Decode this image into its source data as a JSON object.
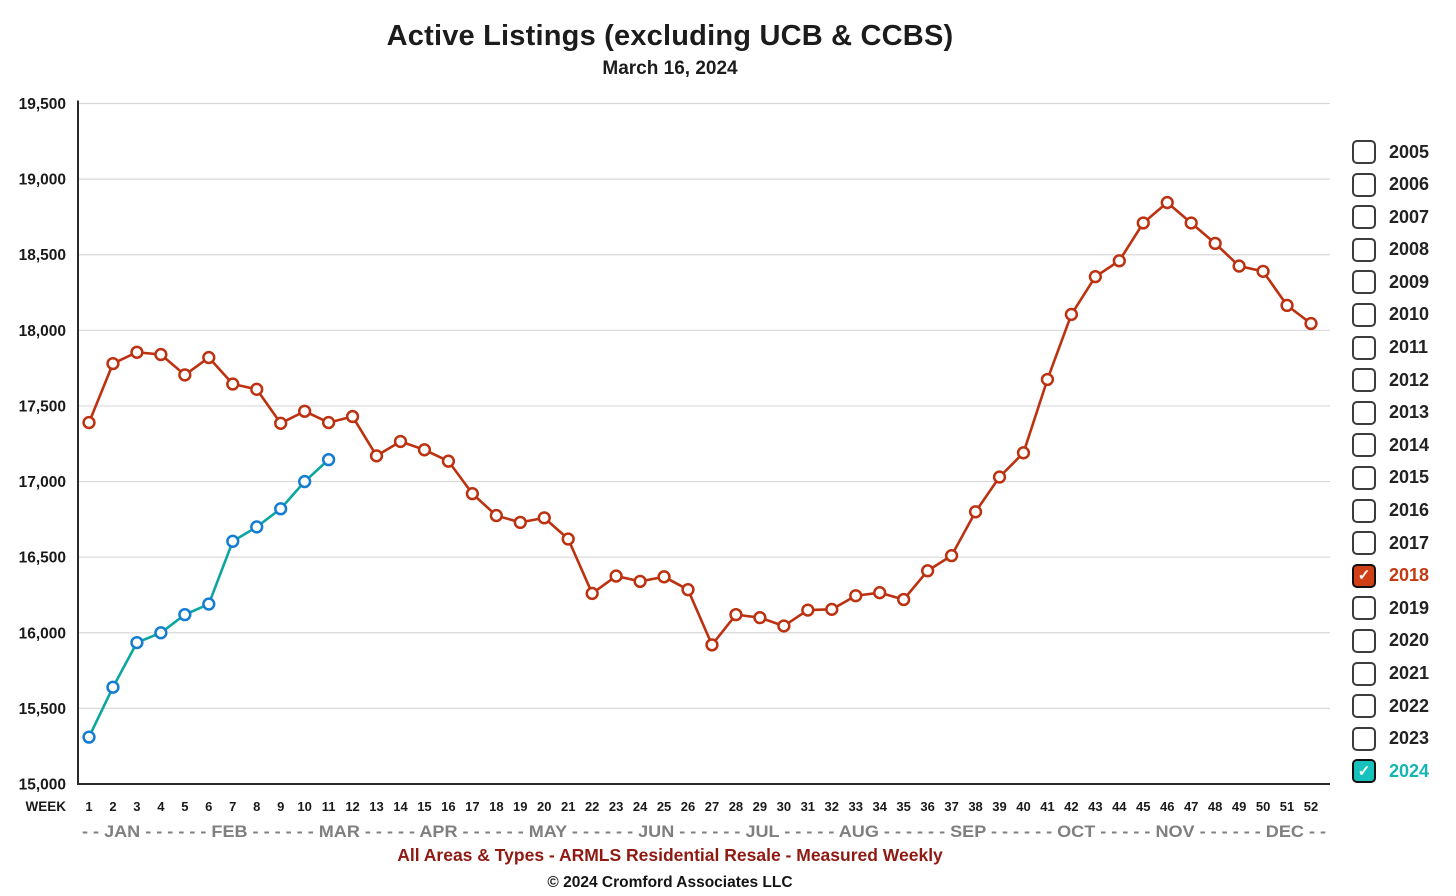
{
  "title": "Active Listings (excluding UCB & CCBS)",
  "subtitle": "March 16, 2024",
  "footer": {
    "caption": "All Areas & Types - ARMLS Residential Resale - Measured Weekly",
    "copyright": "© 2024 Cromford Associates LLC"
  },
  "colors": {
    "gridline": "#d9d9d9",
    "axis": "#2a2a2a",
    "tick_text": "#1a1a1a",
    "month_text": "#7f7f7f",
    "caption_red": "#8e1a12",
    "series_2018": "#bc3211",
    "series_2024_line": "#0ca6a0",
    "series_2024_marker": "#147dd2"
  },
  "legend": {
    "check_glyph": "✓",
    "years": [
      {
        "label": "2005",
        "checked": false
      },
      {
        "label": "2006",
        "checked": false
      },
      {
        "label": "2007",
        "checked": false
      },
      {
        "label": "2008",
        "checked": false
      },
      {
        "label": "2009",
        "checked": false
      },
      {
        "label": "2010",
        "checked": false
      },
      {
        "label": "2011",
        "checked": false
      },
      {
        "label": "2012",
        "checked": false
      },
      {
        "label": "2013",
        "checked": false
      },
      {
        "label": "2014",
        "checked": false
      },
      {
        "label": "2015",
        "checked": false
      },
      {
        "label": "2016",
        "checked": false
      },
      {
        "label": "2017",
        "checked": false
      },
      {
        "label": "2018",
        "checked": true,
        "fill": "#d04016",
        "label_color": "#c43a12"
      },
      {
        "label": "2019",
        "checked": false
      },
      {
        "label": "2020",
        "checked": false
      },
      {
        "label": "2021",
        "checked": false
      },
      {
        "label": "2022",
        "checked": false
      },
      {
        "label": "2023",
        "checked": false
      },
      {
        "label": "2024",
        "checked": true,
        "fill": "#17c2bd",
        "label_color": "#14b5b2"
      }
    ]
  },
  "chart_data": {
    "type": "line",
    "title": "Active Listings (excluding UCB & CCBS)",
    "subtitle": "March 16, 2024",
    "xlabel": "WEEK",
    "x": [
      1,
      2,
      3,
      4,
      5,
      6,
      7,
      8,
      9,
      10,
      11,
      12,
      13,
      14,
      15,
      16,
      17,
      18,
      19,
      20,
      21,
      22,
      23,
      24,
      25,
      26,
      27,
      28,
      29,
      30,
      31,
      32,
      33,
      34,
      35,
      36,
      37,
      38,
      39,
      40,
      41,
      42,
      43,
      44,
      45,
      46,
      47,
      48,
      49,
      50,
      51,
      52
    ],
    "months_axis": "- - JAN - - - - - - FEB - - - - - - MAR - - - - - APR - - - - - - MAY - - - - - - JUN - - - - - - JUL - - - - - AUG - - - - - - SEP - - - - - - OCT - - - - - NOV - - - - - - DEC - -",
    "ylim": [
      15000,
      19500
    ],
    "ytick_step": 500,
    "y_ticks": [
      "15,000",
      "15,500",
      "16,000",
      "16,500",
      "17,000",
      "17,500",
      "18,000",
      "18,500",
      "19,000",
      "19,500"
    ],
    "grid": "horizontal",
    "legend_position": "right",
    "series": [
      {
        "name": "2018",
        "line_color": "#bc3211",
        "marker_color": "#bc3211",
        "marker": "open-circle",
        "values": [
          17390,
          17780,
          17855,
          17840,
          17705,
          17820,
          17645,
          17610,
          17385,
          17465,
          17390,
          17430,
          17170,
          17265,
          17210,
          17135,
          16920,
          16775,
          16730,
          16760,
          16620,
          16260,
          16375,
          16340,
          16370,
          16285,
          15920,
          16120,
          16100,
          16045,
          16150,
          16155,
          16245,
          16265,
          16220,
          16410,
          16510,
          16800,
          17030,
          17190,
          17675,
          18105,
          18355,
          18460,
          18710,
          18845,
          18710,
          18575,
          18425,
          18390,
          18165,
          18045
        ]
      },
      {
        "name": "2024",
        "line_color": "#0ca6a0",
        "marker_color": "#147dd2",
        "marker": "open-circle",
        "values": [
          15310,
          15640,
          15935,
          16000,
          16120,
          16190,
          16605,
          16700,
          16820,
          17000,
          17145
        ]
      }
    ]
  }
}
